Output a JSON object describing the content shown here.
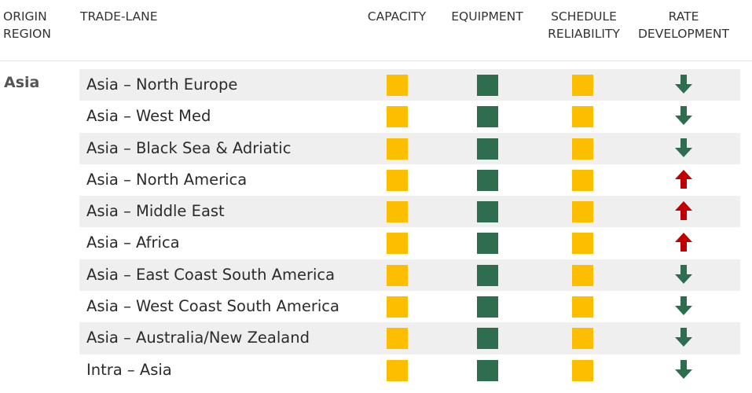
{
  "colors": {
    "amber": "#fdbe00",
    "green": "#2e6e4e",
    "up": "#c00000",
    "down": "#2e6e4e"
  },
  "headers": {
    "origin_region": "ORIGIN\nREGION",
    "trade_lane": "TRADE-LANE",
    "capacity": "CAPACITY",
    "equipment": "EQUIPMENT",
    "schedule_reliability": "SCHEDULE\nRELIABILITY",
    "rate_development": "RATE\nDEVELOPMENT"
  },
  "region": "Asia",
  "rows": [
    {
      "lane": "Asia – North Europe",
      "capacity": "amber",
      "equipment": "green",
      "schedule": "amber",
      "rate": "down"
    },
    {
      "lane": "Asia – West Med",
      "capacity": "amber",
      "equipment": "green",
      "schedule": "amber",
      "rate": "down"
    },
    {
      "lane": "Asia – Black Sea & Adriatic",
      "capacity": "amber",
      "equipment": "green",
      "schedule": "amber",
      "rate": "down"
    },
    {
      "lane": "Asia – North America",
      "capacity": "amber",
      "equipment": "green",
      "schedule": "amber",
      "rate": "up"
    },
    {
      "lane": "Asia – Middle East",
      "capacity": "amber",
      "equipment": "green",
      "schedule": "amber",
      "rate": "up"
    },
    {
      "lane": "Asia – Africa",
      "capacity": "amber",
      "equipment": "green",
      "schedule": "amber",
      "rate": "up"
    },
    {
      "lane": "Asia – East Coast South America",
      "capacity": "amber",
      "equipment": "green",
      "schedule": "amber",
      "rate": "down"
    },
    {
      "lane": "Asia – West Coast South America",
      "capacity": "amber",
      "equipment": "green",
      "schedule": "amber",
      "rate": "down"
    },
    {
      "lane": "Asia – Australia/New Zealand",
      "capacity": "amber",
      "equipment": "green",
      "schedule": "amber",
      "rate": "down"
    },
    {
      "lane": "Intra – Asia",
      "capacity": "amber",
      "equipment": "green",
      "schedule": "amber",
      "rate": "down"
    }
  ]
}
